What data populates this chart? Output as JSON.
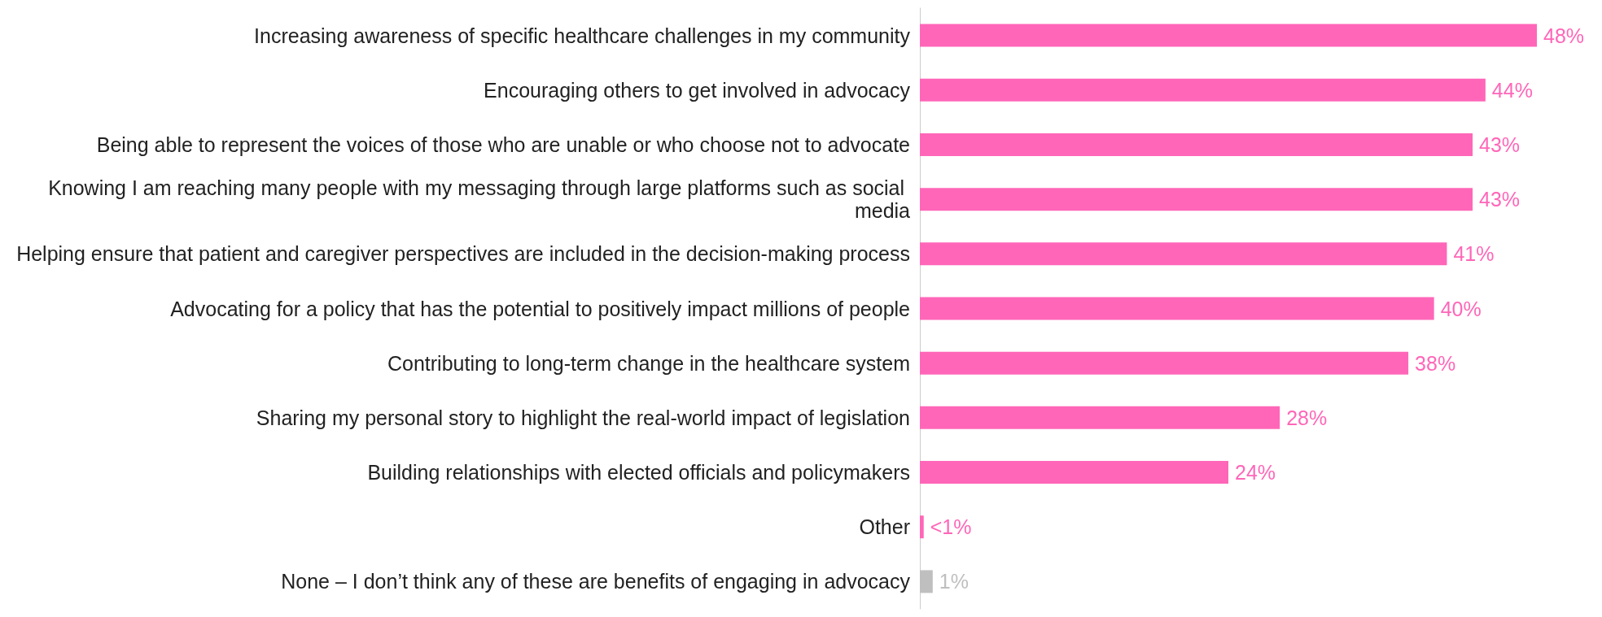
{
  "chart_data": {
    "type": "bar",
    "orientation": "horizontal",
    "categories": [
      "Increasing awareness of specific healthcare challenges in my community",
      "Encouraging others to get involved in advocacy",
      "Being able to represent the voices of those who are unable or who choose not to advocate",
      "Knowing I am reaching many people with my messaging through large platforms such as social media",
      "Helping ensure that patient and caregiver perspectives are included in the decision-making process",
      "Advocating for a policy that has the potential to positively impact millions of people",
      "Contributing to long-term change in the healthcare system",
      "Sharing my personal story to highlight the real-world impact of legislation",
      "Building relationships with elected officials and policymakers",
      "Other",
      "None – I don’t think any of these are benefits of engaging in advocacy"
    ],
    "values": [
      48,
      44,
      43,
      43,
      41,
      40,
      38,
      28,
      24,
      0.3,
      1
    ],
    "value_labels": [
      "48%",
      "44%",
      "43%",
      "43%",
      "41%",
      "40%",
      "38%",
      "28%",
      "24%",
      "<1%",
      "1%"
    ],
    "colors": [
      "#ff66b8",
      "#ff66b8",
      "#ff66b8",
      "#ff66b8",
      "#ff66b8",
      "#ff66b8",
      "#ff66b8",
      "#ff66b8",
      "#ff66b8",
      "#ff66b8",
      "#bfbfbf"
    ],
    "xlim": [
      0,
      48
    ]
  }
}
